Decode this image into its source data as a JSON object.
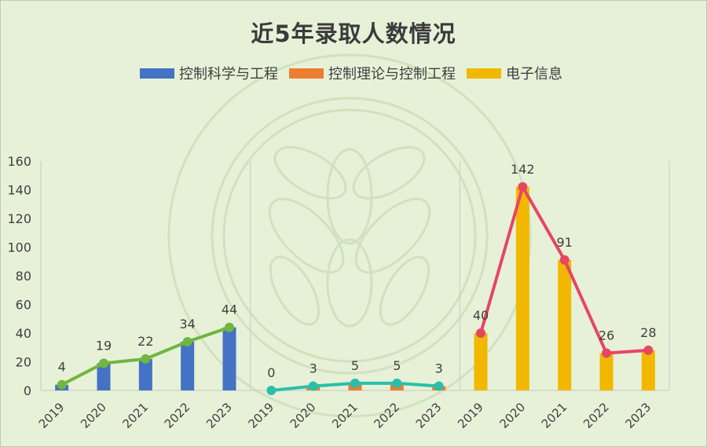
{
  "chart_data": {
    "type": "bar",
    "title": "近5年录取人数情况",
    "ylim": [
      0,
      160
    ],
    "yticks": [
      0,
      20,
      40,
      60,
      80,
      100,
      120,
      140,
      160
    ],
    "grid": false,
    "legend_position": "top",
    "groups": [
      {
        "name": "控制科学与工程",
        "color": "#4472c4",
        "line_color": "#70b63f",
        "categories": [
          "2019",
          "2020",
          "2021",
          "2022",
          "2023"
        ],
        "values": [
          4,
          19,
          22,
          34,
          44
        ]
      },
      {
        "name": "控制理论与控制工程",
        "color": "#ed7d31",
        "line_color": "#2bbfa9",
        "categories": [
          "2019",
          "2020",
          "2021",
          "2022",
          "2023"
        ],
        "values": [
          0,
          3,
          5,
          5,
          3
        ]
      },
      {
        "name": "电子信息",
        "color": "#f2b800",
        "line_color": "#e64663",
        "categories": [
          "2019",
          "2020",
          "2021",
          "2022",
          "2023"
        ],
        "values": [
          40,
          142,
          91,
          26,
          28
        ]
      }
    ]
  }
}
